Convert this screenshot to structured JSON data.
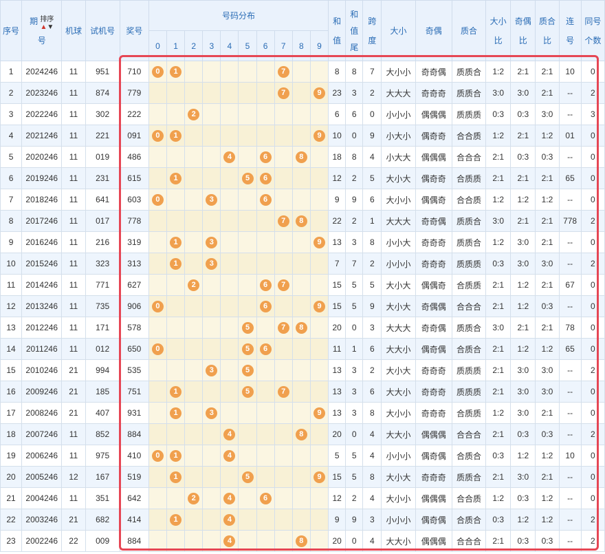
{
  "headers": {
    "seq": "序号",
    "period_line1": "期",
    "period_line2": "号",
    "sort_label": "排序",
    "machine": "机球",
    "trial": "试机号",
    "prize": "奖号",
    "distribution": "号码分布",
    "digits": [
      "0",
      "1",
      "2",
      "3",
      "4",
      "5",
      "6",
      "7",
      "8",
      "9"
    ],
    "sum_line1": "和",
    "sum_line2": "值",
    "sumtail_line1": "和",
    "sumtail_line2": "值",
    "sumtail_line3": "尾",
    "span_line1": "跨",
    "span_line2": "度",
    "size": "大小",
    "parity": "奇偶",
    "prime": "质合",
    "sizeratio_line1": "大小",
    "sizeratio_line2": "比",
    "parityratio_line1": "奇偶",
    "parityratio_line2": "比",
    "primeratio_line1": "质合",
    "primeratio_line2": "比",
    "consec_line1": "连",
    "consec_line2": "号",
    "same_line1": "同号",
    "same_line2": "个数"
  },
  "rows": [
    {
      "seq": "1",
      "period": "2024246",
      "machine": "11",
      "trial": "951",
      "prize": "710",
      "balls": [
        0,
        1,
        7
      ],
      "sum": "8",
      "tail": "8",
      "span": "7",
      "size": "大小小",
      "parity": "奇奇偶",
      "prime": "质质合",
      "sr": "1:2",
      "pr": "2:1",
      "qr": "2:1",
      "consec": "10",
      "same": "0"
    },
    {
      "seq": "2",
      "period": "2023246",
      "machine": "11",
      "trial": "874",
      "prize": "779",
      "balls": [
        7,
        9
      ],
      "sum": "23",
      "tail": "3",
      "span": "2",
      "size": "大大大",
      "parity": "奇奇奇",
      "prime": "质质合",
      "sr": "3:0",
      "pr": "3:0",
      "qr": "2:1",
      "consec": "--",
      "same": "2"
    },
    {
      "seq": "3",
      "period": "2022246",
      "machine": "11",
      "trial": "302",
      "prize": "222",
      "balls": [
        2
      ],
      "sum": "6",
      "tail": "6",
      "span": "0",
      "size": "小小小",
      "parity": "偶偶偶",
      "prime": "质质质",
      "sr": "0:3",
      "pr": "0:3",
      "qr": "3:0",
      "consec": "--",
      "same": "3"
    },
    {
      "seq": "4",
      "period": "2021246",
      "machine": "11",
      "trial": "221",
      "prize": "091",
      "balls": [
        0,
        1,
        9
      ],
      "sum": "10",
      "tail": "0",
      "span": "9",
      "size": "小大小",
      "parity": "偶奇奇",
      "prime": "合合质",
      "sr": "1:2",
      "pr": "2:1",
      "qr": "1:2",
      "consec": "01",
      "same": "0"
    },
    {
      "seq": "5",
      "period": "2020246",
      "machine": "11",
      "trial": "019",
      "prize": "486",
      "balls": [
        4,
        6,
        8
      ],
      "sum": "18",
      "tail": "8",
      "span": "4",
      "size": "小大大",
      "parity": "偶偶偶",
      "prime": "合合合",
      "sr": "2:1",
      "pr": "0:3",
      "qr": "0:3",
      "consec": "--",
      "same": "0"
    },
    {
      "seq": "6",
      "period": "2019246",
      "machine": "11",
      "trial": "231",
      "prize": "615",
      "balls": [
        1,
        5,
        6
      ],
      "sum": "12",
      "tail": "2",
      "span": "5",
      "size": "大小大",
      "parity": "偶奇奇",
      "prime": "合质质",
      "sr": "2:1",
      "pr": "2:1",
      "qr": "2:1",
      "consec": "65",
      "same": "0"
    },
    {
      "seq": "7",
      "period": "2018246",
      "machine": "11",
      "trial": "641",
      "prize": "603",
      "balls": [
        0,
        3,
        6
      ],
      "sum": "9",
      "tail": "9",
      "span": "6",
      "size": "大小小",
      "parity": "偶偶奇",
      "prime": "合合质",
      "sr": "1:2",
      "pr": "1:2",
      "qr": "1:2",
      "consec": "--",
      "same": "0"
    },
    {
      "seq": "8",
      "period": "2017246",
      "machine": "11",
      "trial": "017",
      "prize": "778",
      "balls": [
        7,
        8
      ],
      "sum": "22",
      "tail": "2",
      "span": "1",
      "size": "大大大",
      "parity": "奇奇偶",
      "prime": "质质合",
      "sr": "3:0",
      "pr": "2:1",
      "qr": "2:1",
      "consec": "778",
      "same": "2"
    },
    {
      "seq": "9",
      "period": "2016246",
      "machine": "11",
      "trial": "216",
      "prize": "319",
      "balls": [
        1,
        3,
        9
      ],
      "sum": "13",
      "tail": "3",
      "span": "8",
      "size": "小小大",
      "parity": "奇奇奇",
      "prime": "质质合",
      "sr": "1:2",
      "pr": "3:0",
      "qr": "2:1",
      "consec": "--",
      "same": "0"
    },
    {
      "seq": "10",
      "period": "2015246",
      "machine": "11",
      "trial": "323",
      "prize": "313",
      "balls": [
        1,
        3
      ],
      "sum": "7",
      "tail": "7",
      "span": "2",
      "size": "小小小",
      "parity": "奇奇奇",
      "prime": "质质质",
      "sr": "0:3",
      "pr": "3:0",
      "qr": "3:0",
      "consec": "--",
      "same": "2"
    },
    {
      "seq": "11",
      "period": "2014246",
      "machine": "11",
      "trial": "771",
      "prize": "627",
      "balls": [
        2,
        6,
        7
      ],
      "sum": "15",
      "tail": "5",
      "span": "5",
      "size": "大小大",
      "parity": "偶偶奇",
      "prime": "合质质",
      "sr": "2:1",
      "pr": "1:2",
      "qr": "2:1",
      "consec": "67",
      "same": "0"
    },
    {
      "seq": "12",
      "period": "2013246",
      "machine": "11",
      "trial": "735",
      "prize": "906",
      "balls": [
        0,
        6,
        9
      ],
      "sum": "15",
      "tail": "5",
      "span": "9",
      "size": "大小大",
      "parity": "奇偶偶",
      "prime": "合合合",
      "sr": "2:1",
      "pr": "1:2",
      "qr": "0:3",
      "consec": "--",
      "same": "0"
    },
    {
      "seq": "13",
      "period": "2012246",
      "machine": "11",
      "trial": "171",
      "prize": "578",
      "balls": [
        5,
        7,
        8
      ],
      "sum": "20",
      "tail": "0",
      "span": "3",
      "size": "大大大",
      "parity": "奇奇偶",
      "prime": "质质合",
      "sr": "3:0",
      "pr": "2:1",
      "qr": "2:1",
      "consec": "78",
      "same": "0"
    },
    {
      "seq": "14",
      "period": "2011246",
      "machine": "11",
      "trial": "012",
      "prize": "650",
      "balls": [
        0,
        5,
        6
      ],
      "sum": "11",
      "tail": "1",
      "span": "6",
      "size": "大大小",
      "parity": "偶奇偶",
      "prime": "合质合",
      "sr": "2:1",
      "pr": "1:2",
      "qr": "1:2",
      "consec": "65",
      "same": "0"
    },
    {
      "seq": "15",
      "period": "2010246",
      "machine": "21",
      "trial": "994",
      "prize": "535",
      "balls": [
        3,
        5
      ],
      "sum": "13",
      "tail": "3",
      "span": "2",
      "size": "大小大",
      "parity": "奇奇奇",
      "prime": "质质质",
      "sr": "2:1",
      "pr": "3:0",
      "qr": "3:0",
      "consec": "--",
      "same": "2"
    },
    {
      "seq": "16",
      "period": "2009246",
      "machine": "21",
      "trial": "185",
      "prize": "751",
      "balls": [
        1,
        5,
        7
      ],
      "sum": "13",
      "tail": "3",
      "span": "6",
      "size": "大大小",
      "parity": "奇奇奇",
      "prime": "质质质",
      "sr": "2:1",
      "pr": "3:0",
      "qr": "3:0",
      "consec": "--",
      "same": "0"
    },
    {
      "seq": "17",
      "period": "2008246",
      "machine": "21",
      "trial": "407",
      "prize": "931",
      "balls": [
        1,
        3,
        9
      ],
      "sum": "13",
      "tail": "3",
      "span": "8",
      "size": "大小小",
      "parity": "奇奇奇",
      "prime": "合质质",
      "sr": "1:2",
      "pr": "3:0",
      "qr": "2:1",
      "consec": "--",
      "same": "0"
    },
    {
      "seq": "18",
      "period": "2007246",
      "machine": "11",
      "trial": "852",
      "prize": "884",
      "balls": [
        4,
        8
      ],
      "sum": "20",
      "tail": "0",
      "span": "4",
      "size": "大大小",
      "parity": "偶偶偶",
      "prime": "合合合",
      "sr": "2:1",
      "pr": "0:3",
      "qr": "0:3",
      "consec": "--",
      "same": "2"
    },
    {
      "seq": "19",
      "period": "2006246",
      "machine": "11",
      "trial": "975",
      "prize": "410",
      "balls": [
        0,
        1,
        4
      ],
      "sum": "5",
      "tail": "5",
      "span": "4",
      "size": "小小小",
      "parity": "偶奇偶",
      "prime": "合质合",
      "sr": "0:3",
      "pr": "1:2",
      "qr": "1:2",
      "consec": "10",
      "same": "0"
    },
    {
      "seq": "20",
      "period": "2005246",
      "machine": "12",
      "trial": "167",
      "prize": "519",
      "balls": [
        1,
        5,
        9
      ],
      "sum": "15",
      "tail": "5",
      "span": "8",
      "size": "大小大",
      "parity": "奇奇奇",
      "prime": "质质合",
      "sr": "2:1",
      "pr": "3:0",
      "qr": "2:1",
      "consec": "--",
      "same": "0"
    },
    {
      "seq": "21",
      "period": "2004246",
      "machine": "11",
      "trial": "351",
      "prize": "642",
      "balls": [
        2,
        4,
        6
      ],
      "sum": "12",
      "tail": "2",
      "span": "4",
      "size": "大小小",
      "parity": "偶偶偶",
      "prime": "合合质",
      "sr": "1:2",
      "pr": "0:3",
      "qr": "1:2",
      "consec": "--",
      "same": "0"
    },
    {
      "seq": "22",
      "period": "2003246",
      "machine": "21",
      "trial": "682",
      "prize": "414",
      "balls": [
        1,
        4
      ],
      "sum": "9",
      "tail": "9",
      "span": "3",
      "size": "小小小",
      "parity": "偶奇偶",
      "prime": "合质合",
      "sr": "0:3",
      "pr": "1:2",
      "qr": "1:2",
      "consec": "--",
      "same": "2"
    },
    {
      "seq": "23",
      "period": "2002246",
      "machine": "22",
      "trial": "009",
      "prize": "884",
      "balls": [
        4,
        8
      ],
      "sum": "20",
      "tail": "0",
      "span": "4",
      "size": "大大小",
      "parity": "偶偶偶",
      "prime": "合合合",
      "sr": "2:1",
      "pr": "0:3",
      "qr": "0:3",
      "consec": "--",
      "same": "2"
    }
  ]
}
